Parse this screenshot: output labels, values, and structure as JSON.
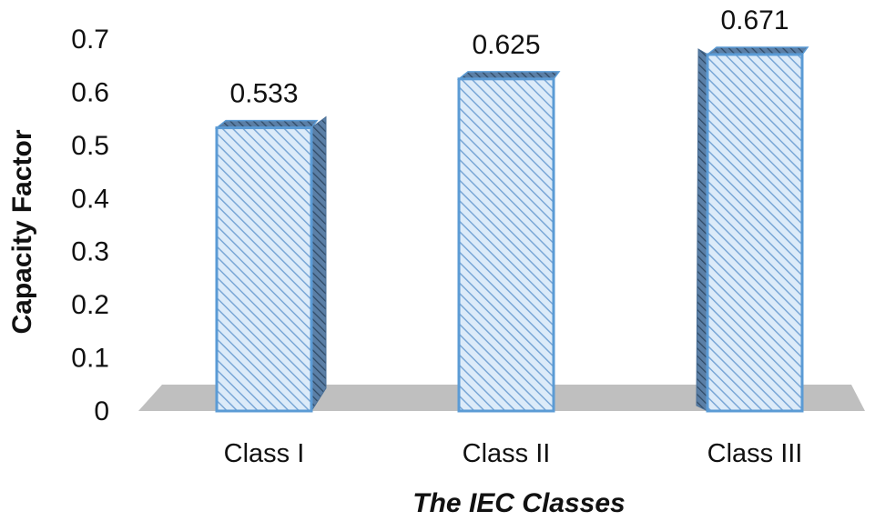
{
  "chart_data": {
    "type": "bar",
    "categories": [
      "Class I",
      "Class II",
      "Class III"
    ],
    "values": [
      0.533,
      0.625,
      0.671
    ],
    "data_labels": [
      "0.533",
      "0.625",
      "0.671"
    ],
    "title": "",
    "xlabel": "The IEC Classes",
    "ylabel": "Capacity Factor",
    "ylim": [
      0,
      0.7
    ],
    "yticks": [
      "0",
      "0.1",
      "0.2",
      "0.3",
      "0.4",
      "0.5",
      "0.6",
      "0.7"
    ],
    "grid": false,
    "legend": "none",
    "style": "3d-column",
    "colors": {
      "bar_fill": "#dcebf9",
      "bar_hatch": "#7aa7d6",
      "bar_edge": "#5b9bd5",
      "bar_side": "#4a6f96",
      "floor": "#bfbfbf"
    }
  }
}
